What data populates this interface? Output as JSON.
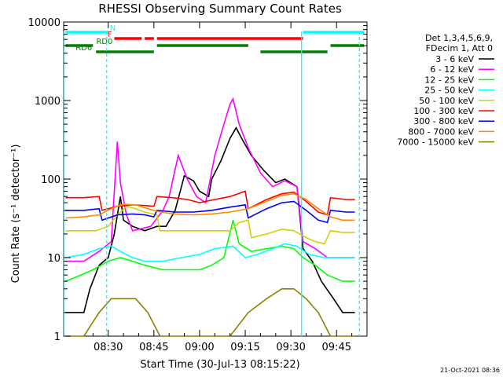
{
  "chart_data": {
    "type": "line",
    "title": "RHESSI Observing Summary Count Rates",
    "xlabel": "Start Time (30-Jul-13 08:15:22)",
    "ylabel": "Count Rate (s⁻¹ detector⁻¹)",
    "y_scale": "log",
    "ylim": [
      1,
      10000
    ],
    "xlim": [
      "08:15:22",
      "09:55:00"
    ],
    "x_ticks": [
      "08:30",
      "08:45",
      "09:00",
      "09:15",
      "09:30",
      "09:45"
    ],
    "y_ticks": [
      "1",
      "10",
      "100",
      "1000",
      "10000"
    ],
    "legend_header": [
      "Det 1,3,4,5,6,9,",
      "FDecim 1, Att 0"
    ],
    "legend_position": "right",
    "timestamp": "21-Oct-2021 08:36",
    "series": [
      {
        "name": "3 - 6 keV",
        "color": "#000000",
        "points": [
          [
            "08:16",
            2
          ],
          [
            "08:22",
            2
          ],
          [
            "08:24",
            4
          ],
          [
            "08:27",
            8
          ],
          [
            "08:30",
            10
          ],
          [
            "08:32",
            20
          ],
          [
            "08:34",
            60
          ],
          [
            "08:35",
            30
          ],
          [
            "08:38",
            25
          ],
          [
            "08:42",
            22
          ],
          [
            "08:46",
            25
          ],
          [
            "08:49",
            25
          ],
          [
            "08:52",
            40
          ],
          [
            "08:55",
            110
          ],
          [
            "08:58",
            95
          ],
          [
            "09:00",
            70
          ],
          [
            "09:03",
            60
          ],
          [
            "09:04",
            100
          ],
          [
            "09:07",
            170
          ],
          [
            "09:10",
            330
          ],
          [
            "09:12",
            450
          ],
          [
            "09:14",
            320
          ],
          [
            "09:17",
            200
          ],
          [
            "09:21",
            130
          ],
          [
            "09:25",
            90
          ],
          [
            "09:28",
            100
          ],
          [
            "09:32",
            80
          ],
          [
            "09:34",
            13
          ],
          [
            "09:37",
            9
          ],
          [
            "09:40",
            5
          ],
          [
            "09:44",
            3
          ],
          [
            "09:47",
            2
          ],
          [
            "09:51",
            2
          ]
        ]
      },
      {
        "name": "6 - 12 keV",
        "color": "#ff00ff",
        "points": [
          [
            "08:16",
            9
          ],
          [
            "08:22",
            9
          ],
          [
            "08:27",
            12
          ],
          [
            "08:31",
            16
          ],
          [
            "08:33",
            300
          ],
          [
            "08:34",
            90
          ],
          [
            "08:36",
            35
          ],
          [
            "08:38",
            22
          ],
          [
            "08:44",
            25
          ],
          [
            "08:48",
            40
          ],
          [
            "08:50",
            60
          ],
          [
            "08:53",
            200
          ],
          [
            "08:56",
            100
          ],
          [
            "08:59",
            60
          ],
          [
            "09:02",
            50
          ],
          [
            "09:05",
            200
          ],
          [
            "09:08",
            500
          ],
          [
            "09:10",
            900
          ],
          [
            "09:11",
            1050
          ],
          [
            "09:13",
            500
          ],
          [
            "09:16",
            250
          ],
          [
            "09:20",
            120
          ],
          [
            "09:24",
            80
          ],
          [
            "09:28",
            95
          ],
          [
            "09:32",
            80
          ],
          [
            "09:34",
            16
          ],
          [
            "09:38",
            13
          ],
          [
            "09:42",
            10
          ],
          [
            "09:47",
            10
          ],
          [
            "09:51",
            10
          ]
        ]
      },
      {
        "name": "12 - 25 keV",
        "color": "#00ff00",
        "points": [
          [
            "08:16",
            5
          ],
          [
            "08:21",
            6
          ],
          [
            "08:25",
            7
          ],
          [
            "08:30",
            9
          ],
          [
            "08:34",
            10
          ],
          [
            "08:38",
            9
          ],
          [
            "08:42",
            8
          ],
          [
            "08:48",
            7
          ],
          [
            "08:54",
            7
          ],
          [
            "09:00",
            7
          ],
          [
            "09:04",
            8
          ],
          [
            "09:08",
            10
          ],
          [
            "09:11",
            30
          ],
          [
            "09:13",
            15
          ],
          [
            "09:17",
            12
          ],
          [
            "09:22",
            13
          ],
          [
            "09:27",
            14
          ],
          [
            "09:31",
            13
          ],
          [
            "09:34",
            10
          ],
          [
            "09:38",
            8
          ],
          [
            "09:42",
            6
          ],
          [
            "09:47",
            5
          ],
          [
            "09:51",
            5
          ]
        ]
      },
      {
        "name": "25 - 50 keV",
        "color": "#00ffff",
        "points": [
          [
            "08:16",
            10
          ],
          [
            "08:22",
            11
          ],
          [
            "08:27",
            13
          ],
          [
            "08:31",
            14
          ],
          [
            "08:34",
            12
          ],
          [
            "08:38",
            10
          ],
          [
            "08:42",
            9
          ],
          [
            "08:48",
            9
          ],
          [
            "08:54",
            10
          ],
          [
            "09:00",
            11
          ],
          [
            "09:05",
            13
          ],
          [
            "09:11",
            14
          ],
          [
            "09:15",
            10
          ],
          [
            "09:19",
            11
          ],
          [
            "09:24",
            13
          ],
          [
            "09:28",
            15
          ],
          [
            "09:32",
            14
          ],
          [
            "09:36",
            11
          ],
          [
            "09:41",
            10
          ],
          [
            "09:47",
            10
          ],
          [
            "09:51",
            10
          ]
        ]
      },
      {
        "name": "50 - 100 keV",
        "color": "#d2d200",
        "points": [
          [
            "08:16",
            22
          ],
          [
            "08:22",
            22
          ],
          [
            "08:26",
            22
          ],
          [
            "08:30",
            25
          ],
          [
            "08:33",
            35
          ],
          [
            "08:36",
            45
          ],
          [
            "08:39",
            42
          ],
          [
            "08:42",
            38
          ],
          [
            "08:46",
            35
          ],
          [
            "08:47",
            22
          ],
          [
            "08:52",
            22
          ],
          [
            "08:58",
            22
          ],
          [
            "09:04",
            22
          ],
          [
            "09:10",
            22
          ],
          [
            "09:13",
            28
          ],
          [
            "09:16",
            30
          ],
          [
            "09:17",
            18
          ],
          [
            "09:22",
            20
          ],
          [
            "09:27",
            23
          ],
          [
            "09:31",
            22
          ],
          [
            "09:35",
            18
          ],
          [
            "09:38",
            16
          ],
          [
            "09:41",
            15
          ],
          [
            "09:43",
            22
          ],
          [
            "09:47",
            21
          ],
          [
            "09:51",
            21
          ]
        ]
      },
      {
        "name": "100 - 300 keV",
        "color": "#ff0000",
        "points": [
          [
            "08:16",
            58
          ],
          [
            "08:22",
            58
          ],
          [
            "08:27",
            60
          ],
          [
            "08:28",
            40
          ],
          [
            "08:33",
            45
          ],
          [
            "08:38",
            47
          ],
          [
            "08:42",
            46
          ],
          [
            "08:45",
            45
          ],
          [
            "08:46",
            60
          ],
          [
            "08:51",
            58
          ],
          [
            "08:56",
            55
          ],
          [
            "09:00",
            50
          ],
          [
            "09:05",
            55
          ],
          [
            "09:10",
            60
          ],
          [
            "09:15",
            70
          ],
          [
            "09:16",
            42
          ],
          [
            "09:22",
            55
          ],
          [
            "09:27",
            65
          ],
          [
            "09:31",
            68
          ],
          [
            "09:35",
            52
          ],
          [
            "09:39",
            38
          ],
          [
            "09:42",
            35
          ],
          [
            "09:43",
            58
          ],
          [
            "09:48",
            55
          ],
          [
            "09:51",
            55
          ]
        ]
      },
      {
        "name": "300 - 800 keV",
        "color": "#0000ff",
        "points": [
          [
            "08:16",
            40
          ],
          [
            "08:22",
            40
          ],
          [
            "08:27",
            42
          ],
          [
            "08:28",
            30
          ],
          [
            "08:33",
            35
          ],
          [
            "08:38",
            36
          ],
          [
            "08:42",
            35
          ],
          [
            "08:45",
            33
          ],
          [
            "08:46",
            40
          ],
          [
            "08:52",
            38
          ],
          [
            "08:58",
            38
          ],
          [
            "09:04",
            40
          ],
          [
            "09:10",
            44
          ],
          [
            "09:15",
            47
          ],
          [
            "09:16",
            32
          ],
          [
            "09:22",
            42
          ],
          [
            "09:27",
            50
          ],
          [
            "09:31",
            52
          ],
          [
            "09:35",
            40
          ],
          [
            "09:39",
            30
          ],
          [
            "09:42",
            28
          ],
          [
            "09:43",
            40
          ],
          [
            "09:48",
            38
          ],
          [
            "09:51",
            38
          ]
        ]
      },
      {
        "name": "800 - 7000 keV",
        "color": "#ff8c00",
        "points": [
          [
            "08:16",
            32
          ],
          [
            "08:22",
            33
          ],
          [
            "08:27",
            35
          ],
          [
            "08:31",
            42
          ],
          [
            "08:35",
            48
          ],
          [
            "08:39",
            47
          ],
          [
            "08:43",
            42
          ],
          [
            "08:47",
            38
          ],
          [
            "08:52",
            36
          ],
          [
            "08:58",
            35
          ],
          [
            "09:04",
            36
          ],
          [
            "09:10",
            38
          ],
          [
            "09:16",
            42
          ],
          [
            "09:22",
            52
          ],
          [
            "09:27",
            62
          ],
          [
            "09:31",
            65
          ],
          [
            "09:35",
            55
          ],
          [
            "09:39",
            42
          ],
          [
            "09:43",
            33
          ],
          [
            "09:47",
            30
          ],
          [
            "09:51",
            30
          ]
        ]
      },
      {
        "name": "7000 - 15000 keV",
        "color": "#8b8000",
        "points": [
          [
            "08:16",
            1
          ],
          [
            "08:22",
            1
          ],
          [
            "08:27",
            2
          ],
          [
            "08:31",
            3
          ],
          [
            "08:35",
            3
          ],
          [
            "08:39",
            3
          ],
          [
            "08:43",
            2
          ],
          [
            "08:47",
            1
          ],
          [
            "08:52",
            1
          ],
          [
            "08:58",
            1
          ],
          [
            "09:04",
            1
          ],
          [
            "09:10",
            1
          ],
          [
            "09:16",
            2
          ],
          [
            "09:22",
            3
          ],
          [
            "09:27",
            4
          ],
          [
            "09:31",
            4
          ],
          [
            "09:35",
            3
          ],
          [
            "09:39",
            2
          ],
          [
            "09:43",
            1
          ],
          [
            "09:47",
            1
          ],
          [
            "09:51",
            1
          ]
        ]
      }
    ],
    "flags": {
      "N": {
        "label": "N",
        "color": "#00ffff",
        "segments": [
          [
            "08:16",
            "08:30"
          ],
          [
            "09:34",
            "09:54"
          ]
        ]
      },
      "F": {
        "label": "F",
        "color": "#ff0000",
        "segments": [
          [
            "08:32",
            "08:41"
          ],
          [
            "08:42",
            "08:45"
          ],
          [
            "08:46",
            "09:34"
          ]
        ]
      },
      "RD0": {
        "label": "RD0",
        "color": "#008000",
        "segments": [
          [
            "08:16",
            "08:25"
          ],
          [
            "08:46",
            "09:16"
          ],
          [
            "09:43",
            "09:54"
          ]
        ]
      },
      "RD6": {
        "label": "RD6",
        "color": "#008000",
        "segments": [
          [
            "08:26",
            "08:45"
          ],
          [
            "09:20",
            "09:42"
          ]
        ]
      }
    },
    "vertical_markers": {
      "color": "#00ffff",
      "solid": [
        "08:15:30",
        "09:33:30"
      ],
      "dashed": [
        "08:29:30",
        "09:52:30"
      ]
    }
  }
}
